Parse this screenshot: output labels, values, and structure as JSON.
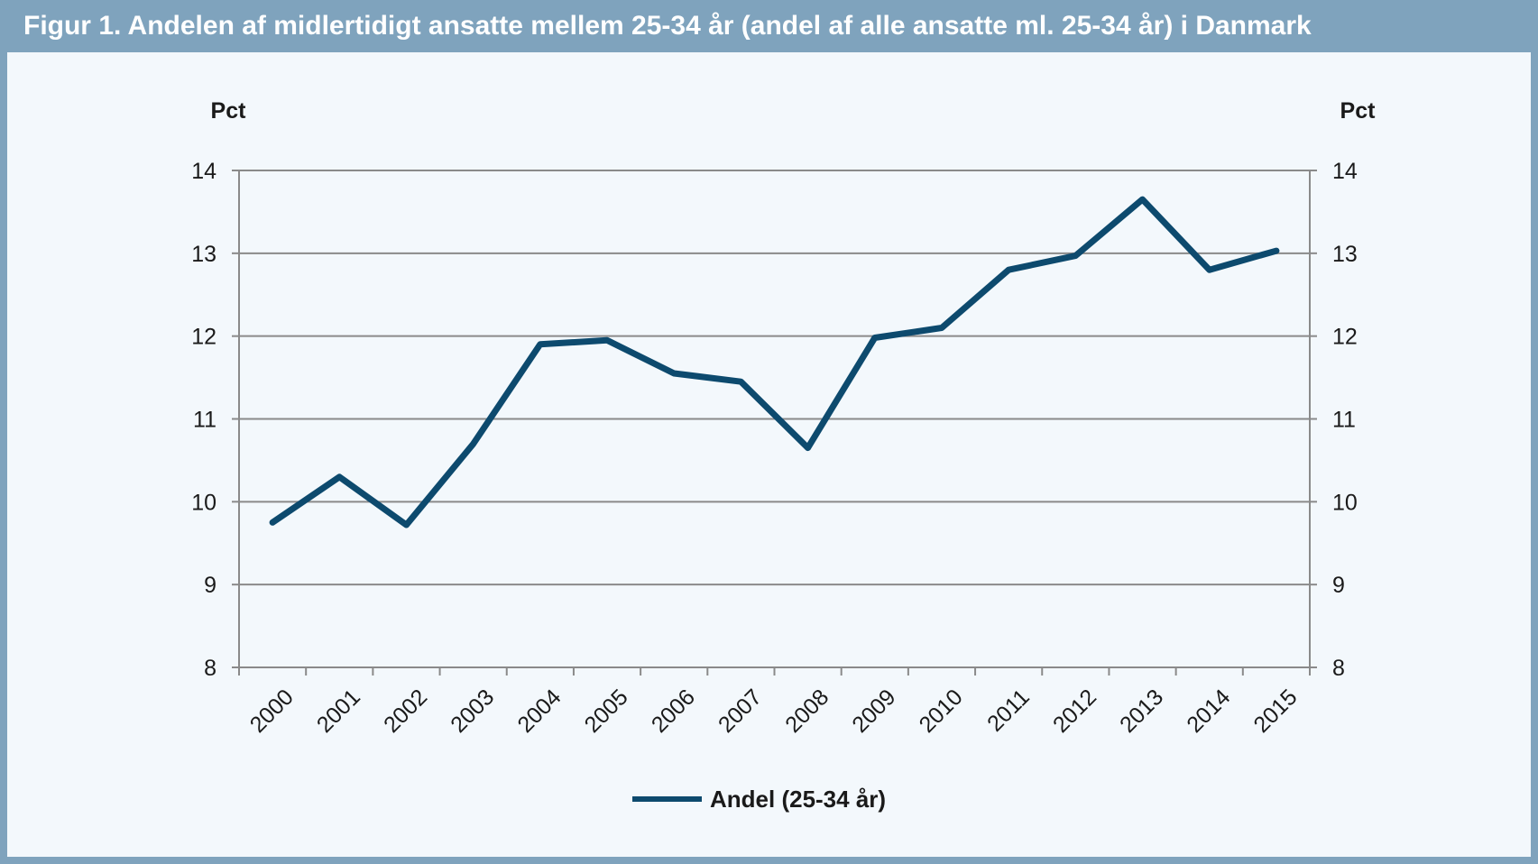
{
  "title": "Figur 1. Andelen af midlertidigt ansatte mellem 25-34 år (andel af alle ansatte ml. 25-34 år) i Danmark",
  "colors": {
    "frame": "#7fa3bd",
    "panel": "#f3f8fc",
    "series": "#0d4a6e",
    "grid": "#8a8a8a"
  },
  "chart_data": {
    "type": "line",
    "x": [
      "2000",
      "2001",
      "2002",
      "2003",
      "2004",
      "2005",
      "2006",
      "2007",
      "2008",
      "2009",
      "2010",
      "2011",
      "2012",
      "2013",
      "2014",
      "2015"
    ],
    "series": [
      {
        "name": "Andel (25-34 år)",
        "values": [
          9.75,
          10.3,
          9.72,
          10.7,
          11.9,
          11.95,
          11.55,
          11.45,
          10.65,
          11.98,
          12.1,
          12.8,
          12.97,
          13.65,
          12.8,
          13.03
        ]
      }
    ],
    "y_left_label": "Pct",
    "y_right_label": "Pct",
    "yticks": [
      "8",
      "9",
      "10",
      "11",
      "12",
      "13",
      "14"
    ],
    "ylim": [
      8,
      14
    ],
    "grid": true,
    "legend_position": "bottom-center"
  }
}
